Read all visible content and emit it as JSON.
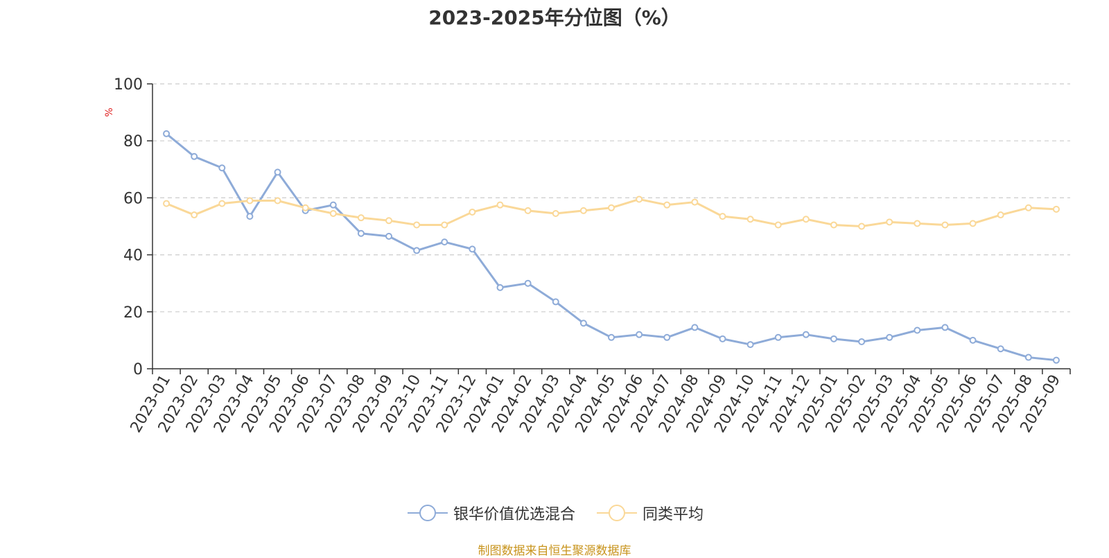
{
  "chart_data": {
    "type": "line",
    "title": "2023-2025年分位图（%）",
    "xlabel": "",
    "ylabel": "%",
    "ylim": [
      0,
      100
    ],
    "yticks": [
      0,
      20,
      40,
      60,
      80,
      100
    ],
    "grid": true,
    "legend_position": "bottom-center",
    "categories": [
      "2023-01",
      "2023-02",
      "2023-03",
      "2023-04",
      "2023-05",
      "2023-06",
      "2023-07",
      "2023-08",
      "2023-09",
      "2023-10",
      "2023-11",
      "2023-12",
      "2024-01",
      "2024-02",
      "2024-03",
      "2024-04",
      "2024-05",
      "2024-06",
      "2024-07",
      "2024-08",
      "2024-09",
      "2024-10",
      "2024-11",
      "2024-12",
      "2025-01",
      "2025-02",
      "2025-03",
      "2025-04",
      "2025-05",
      "2025-06",
      "2025-07",
      "2025-08",
      "2025-09"
    ],
    "series": [
      {
        "name": "银华价值优选混合",
        "color": "#8eabd8",
        "values": [
          82.5,
          74.5,
          70.5,
          53.5,
          69.0,
          55.5,
          57.5,
          47.5,
          46.5,
          41.5,
          44.5,
          42.0,
          28.5,
          30.0,
          23.5,
          16.0,
          11.0,
          12.0,
          11.0,
          14.5,
          10.5,
          8.5,
          11.0,
          12.0,
          10.5,
          9.5,
          11.0,
          13.5,
          14.5,
          10.0,
          7.0,
          4.0,
          3.0
        ]
      },
      {
        "name": "同类平均",
        "color": "#fad898",
        "values": [
          58.0,
          54.0,
          58.0,
          59.0,
          59.0,
          56.5,
          54.5,
          53.0,
          52.0,
          50.5,
          50.5,
          55.0,
          57.5,
          55.5,
          54.5,
          55.5,
          56.5,
          59.5,
          57.5,
          58.5,
          53.5,
          52.5,
          50.5,
          52.5,
          50.5,
          50.0,
          51.5,
          51.0,
          50.5,
          51.0,
          54.0,
          56.5,
          56.0
        ]
      }
    ]
  },
  "source_note": "制图数据来自恒生聚源数据库"
}
